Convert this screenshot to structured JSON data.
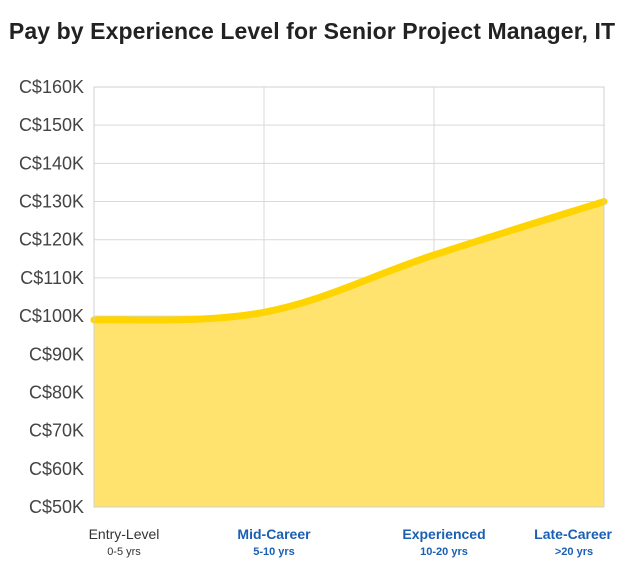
{
  "title": "Pay by Experience Level for Senior Project Manager, IT",
  "colors": {
    "area_fill": "#ffe36e",
    "line": "#ffd400",
    "grid": "#d9d9d9",
    "plot_border": "#d0d0d0",
    "highlight_label": "#1a5fb4",
    "default_label": "#333333"
  },
  "chart_data": {
    "type": "area",
    "title": "Pay by Experience Level for Senior Project Manager, IT",
    "xlabel": "",
    "ylabel": "",
    "categories": [
      "Entry-Level",
      "Mid-Career",
      "Experienced",
      "Late-Career"
    ],
    "category_sublabels": [
      "0-5 yrs",
      "5-10 yrs",
      "10-20 yrs",
      ">20 yrs"
    ],
    "category_highlight": [
      false,
      true,
      true,
      true
    ],
    "values": [
      99000,
      101000,
      116000,
      130000
    ],
    "ylim": [
      50000,
      160000
    ],
    "yticks": [
      50000,
      60000,
      70000,
      80000,
      90000,
      100000,
      110000,
      120000,
      130000,
      140000,
      150000,
      160000
    ],
    "ytick_labels": [
      "C$50K",
      "C$60K",
      "C$70K",
      "C$80K",
      "C$90K",
      "C$100K",
      "C$110K",
      "C$120K",
      "C$130K",
      "C$140K",
      "C$150K",
      "C$160K"
    ],
    "grid": true,
    "legend": "none"
  }
}
